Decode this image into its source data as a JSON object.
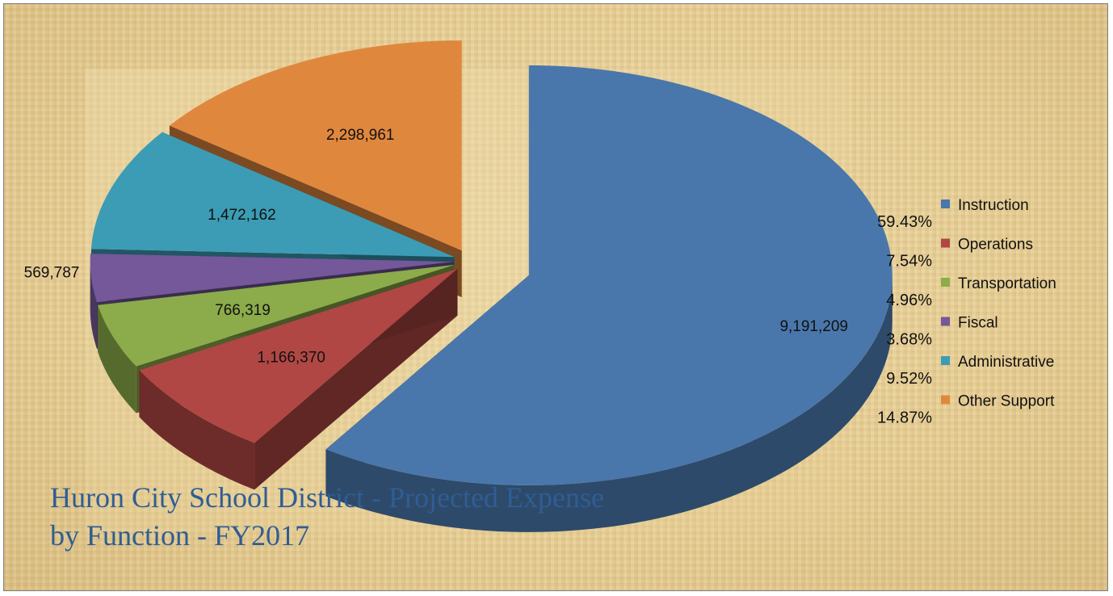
{
  "chart_data": {
    "type": "pie",
    "title_lines": [
      "Huron City School District - Projected Expense",
      "by Function - FY2017"
    ],
    "categories": [
      "Instruction",
      "Operations",
      "Transportation",
      "Fiscal",
      "Administrative",
      "Other Support"
    ],
    "values": [
      9191209,
      1166370,
      766319,
      569787,
      1472162,
      2298961
    ],
    "value_labels": [
      "9,191,209",
      "1,166,370",
      "766,319",
      "569,787",
      "1,472,162",
      "2,298,961"
    ],
    "percent_labels": [
      "59.43%",
      "7.54%",
      "4.96%",
      "3.68%",
      "9.52%",
      "14.87%"
    ],
    "colors": [
      "#4a77ab",
      "#b04744",
      "#8cab4a",
      "#74589a",
      "#3c9cb5",
      "#e0873e"
    ],
    "legend_position": "right",
    "exploded": true,
    "three_d": true
  }
}
